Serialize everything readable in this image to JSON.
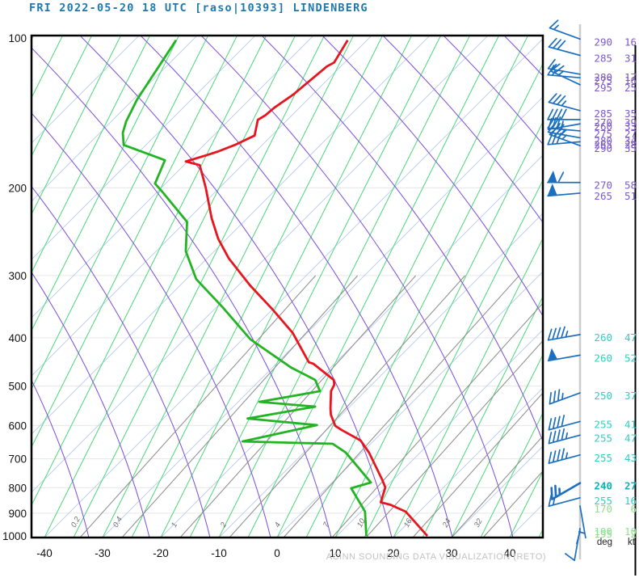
{
  "title": "FRI 2022-05-20 18 UTC [raso|10393] LINDENBERG",
  "footer": "ACINN SOUNDING DATA VISUALIZATION (RETO)",
  "units": {
    "direction": "deg",
    "speed": "kt"
  },
  "colors": {
    "title": "#1e78ad",
    "temperature": "#e8141e",
    "dewpoint": "#22b422",
    "isotherm": "#4ed87e",
    "isotherm_secondary": "#bfd0ef",
    "dry_adiabat": "#7a4bdb",
    "mixing_ratio": "#8a8a8a",
    "gridline": "#e6e6e6",
    "frame": "#000000",
    "barb": "#1b6fc1",
    "staff_line": "#cccccc",
    "wind_groups": {
      "upper": "#7e58cc",
      "mid": "#2fcfc4",
      "mean": "#0fb0b8",
      "low": "#8fe08f"
    }
  },
  "chart_data": {
    "type": "line",
    "variant": "skew-t log-p sounding",
    "station": "LINDENBERG",
    "station_id": "10393",
    "valid_time": "FRI 2022-05-20 18 UTC",
    "pressure_axis": {
      "unit": "hPa",
      "scale": "log",
      "ticks": [
        100,
        200,
        300,
        400,
        500,
        600,
        700,
        800,
        900,
        1000
      ],
      "range": [
        100,
        1000
      ]
    },
    "temperature_axis": {
      "unit": "degC",
      "ticks": [
        -40,
        -30,
        -20,
        -10,
        0,
        10,
        20,
        30,
        40
      ],
      "range": [
        -45,
        46
      ]
    },
    "mixing_ratio_lines": {
      "unit": "g/kg",
      "values": [
        0.2,
        0.4,
        1,
        2,
        4,
        7,
        10,
        16,
        24,
        32
      ]
    },
    "legend_position": "none",
    "grid": true,
    "series": [
      {
        "name": "temperature",
        "axis": "p_hPa,T_C",
        "points": [
          [
            1000,
            25.7
          ],
          [
            894,
            19.9
          ],
          [
            866,
            16.7
          ],
          [
            856,
            14.8
          ],
          [
            799,
            14.3
          ],
          [
            771,
            13.1
          ],
          [
            680,
            8.5
          ],
          [
            643,
            6.0
          ],
          [
            613,
            1.9
          ],
          [
            601,
            0.4
          ],
          [
            571,
            -1.3
          ],
          [
            555,
            -1.9
          ],
          [
            512,
            -3.3
          ],
          [
            497,
            -3.3
          ],
          [
            486,
            -3.8
          ],
          [
            451,
            -8.7
          ],
          [
            448,
            -9.6
          ],
          [
            391,
            -14.9
          ],
          [
            350,
            -20.5
          ],
          [
            314,
            -26.3
          ],
          [
            277,
            -32.3
          ],
          [
            253,
            -35.8
          ],
          [
            230,
            -38.7
          ],
          [
            200,
            -42.3
          ],
          [
            180,
            -45.3
          ],
          [
            177,
            -48.0
          ],
          [
            172,
            -45.0
          ],
          [
            169,
            -43.3
          ],
          [
            164,
            -41.0
          ],
          [
            157,
            -38.4
          ],
          [
            146,
            -39.2
          ],
          [
            143,
            -38.3
          ],
          [
            138,
            -37.4
          ],
          [
            130,
            -35.3
          ],
          [
            114,
            -31.9
          ],
          [
            112,
            -31.0
          ],
          [
            101,
            -30.6
          ]
        ]
      },
      {
        "name": "dewpoint",
        "axis": "p_hPa,Td_C",
        "points": [
          [
            1000,
            15.2
          ],
          [
            894,
            12.9
          ],
          [
            874,
            12.0
          ],
          [
            802,
            8.5
          ],
          [
            781,
            11.4
          ],
          [
            761,
            10.1
          ],
          [
            680,
            4.5
          ],
          [
            653,
            1.5
          ],
          [
            646,
            -14.2
          ],
          [
            599,
            -2.8
          ],
          [
            581,
            -15.3
          ],
          [
            550,
            -4.7
          ],
          [
            538,
            -14.7
          ],
          [
            512,
            -5.2
          ],
          [
            486,
            -7.0
          ],
          [
            459,
            -12.2
          ],
          [
            403,
            -21.6
          ],
          [
            347,
            -29.2
          ],
          [
            305,
            -36.1
          ],
          [
            268,
            -40.3
          ],
          [
            234,
            -42.6
          ],
          [
            203,
            -49.6
          ],
          [
            196,
            -51.4
          ],
          [
            176,
            -51.7
          ],
          [
            164,
            -60.1
          ],
          [
            155,
            -61.3
          ],
          [
            147,
            -61.7
          ],
          [
            133,
            -61.7
          ],
          [
            112,
            -60.7
          ],
          [
            101,
            -60.1
          ]
        ]
      }
    ],
    "winds": [
      {
        "p": 102,
        "dir": 290,
        "spd": 16,
        "group": "upper"
      },
      {
        "p": 110,
        "dir": 285,
        "spd": 31,
        "group": "upper"
      },
      {
        "p": 120,
        "dir": 280,
        "spd": 17,
        "group": "upper"
      },
      {
        "p": 122,
        "dir": 275,
        "spd": 16,
        "group": "upper"
      },
      {
        "p": 126,
        "dir": 295,
        "spd": 25,
        "group": "upper"
      },
      {
        "p": 142,
        "dir": 285,
        "spd": 35,
        "group": "upper"
      },
      {
        "p": 148,
        "dir": 270,
        "spd": 39,
        "group": "upper"
      },
      {
        "p": 151,
        "dir": 260,
        "spd": 33,
        "group": "upper"
      },
      {
        "p": 156,
        "dir": 275,
        "spd": 27,
        "group": "upper"
      },
      {
        "p": 161,
        "dir": 280,
        "spd": 34,
        "group": "upper"
      },
      {
        "p": 164,
        "dir": 265,
        "spd": 28,
        "group": "upper"
      },
      {
        "p": 167,
        "dir": 290,
        "spd": 35,
        "group": "upper"
      },
      {
        "p": 198,
        "dir": 270,
        "spd": 58,
        "group": "upper"
      },
      {
        "p": 208,
        "dir": 265,
        "spd": 51,
        "group": "upper"
      },
      {
        "p": 400,
        "dir": 260,
        "spd": 47,
        "group": "mid"
      },
      {
        "p": 440,
        "dir": 260,
        "spd": 52,
        "group": "mid"
      },
      {
        "p": 524,
        "dir": 250,
        "spd": 37,
        "group": "mid"
      },
      {
        "p": 598,
        "dir": 255,
        "spd": 41,
        "group": "mid"
      },
      {
        "p": 637,
        "dir": 255,
        "spd": 47,
        "group": "mid"
      },
      {
        "p": 698,
        "dir": 255,
        "spd": 43,
        "group": "mid"
      },
      {
        "p": 795,
        "dir": 240,
        "spd": 27,
        "group": "mean",
        "bold": true
      },
      {
        "p": 851,
        "dir": 255,
        "spd": 16,
        "group": "mid"
      },
      {
        "p": 884,
        "dir": 170,
        "spd": 6,
        "group": "low"
      },
      {
        "p": 981,
        "dir": 190,
        "spd": 10,
        "group": "low"
      },
      {
        "p": 993,
        "dir": 195,
        "spd": 2,
        "group": "low"
      }
    ]
  }
}
